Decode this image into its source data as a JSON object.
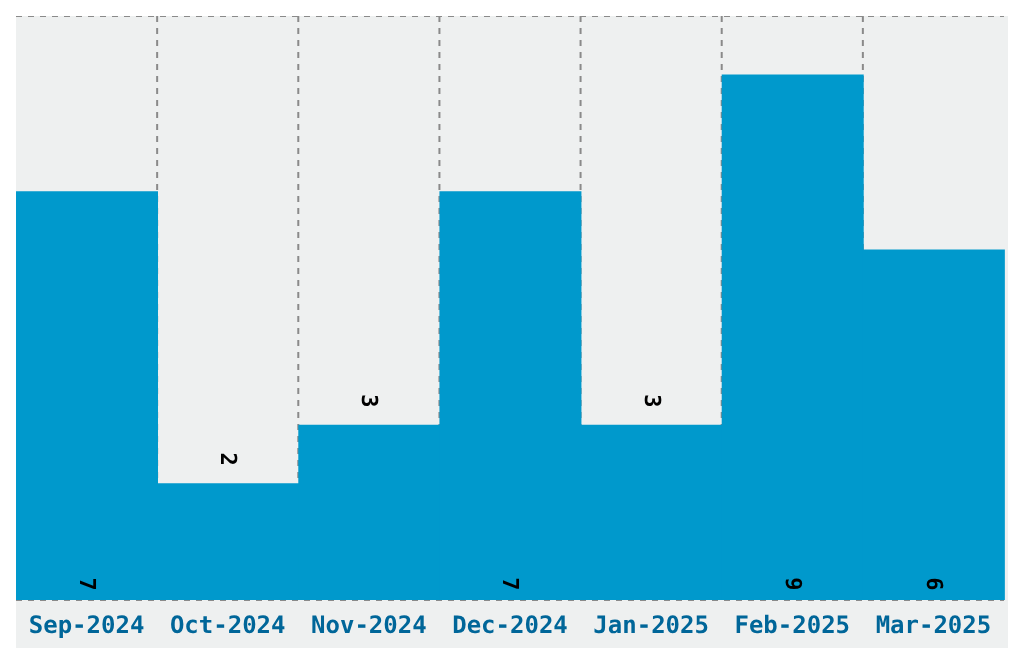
{
  "chart_data": {
    "type": "bar",
    "categories": [
      "Sep-2024",
      "Oct-2024",
      "Nov-2024",
      "Dec-2024",
      "Jan-2025",
      "Feb-2025",
      "Mar-2025"
    ],
    "values": [
      7,
      2,
      3,
      7,
      3,
      9,
      6
    ],
    "color": "#0099cc",
    "ylim": [
      0,
      10
    ],
    "tick_labels": "x",
    "grid": true,
    "data_labels": true
  }
}
